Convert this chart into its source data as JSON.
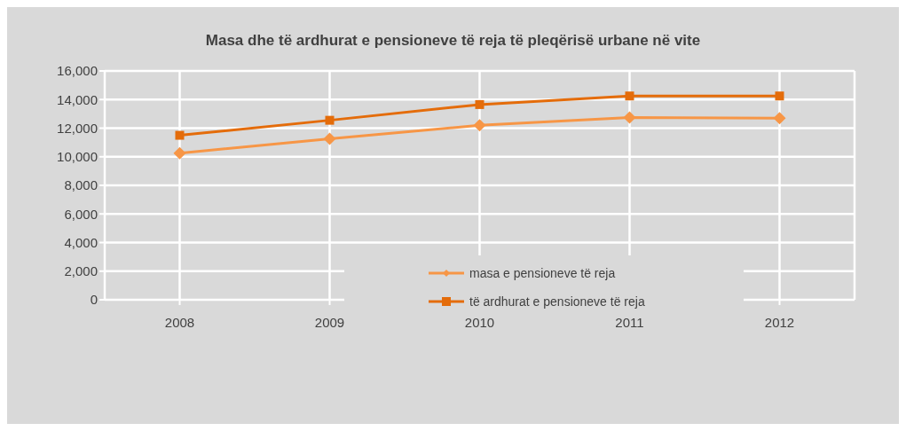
{
  "chart_data": {
    "type": "line",
    "title": "Masa dhe të ardhurat e pensioneve të reja të pleqërisë urbane në vite",
    "categories": [
      "2008",
      "2009",
      "2010",
      "2011",
      "2012"
    ],
    "series": [
      {
        "name": "masa e pensioneve të reja",
        "color": "#f79646",
        "marker": "diamond",
        "values": [
          10250,
          11250,
          12200,
          12750,
          12700
        ]
      },
      {
        "name": "të ardhurat e pensioneve të reja",
        "color": "#e46c0a",
        "marker": "square",
        "values": [
          11500,
          12550,
          13650,
          14250,
          14250
        ]
      }
    ],
    "ylim": [
      0,
      16000
    ],
    "yticks": [
      0,
      {
        "value": 2000,
        "label": "2,000"
      },
      {
        "value": 4000,
        "label": "4,000"
      },
      {
        "value": 6000,
        "label": "6,000"
      },
      {
        "value": 8000,
        "label": "8,000"
      },
      {
        "value": 10000,
        "label": "10,000"
      },
      {
        "value": 12000,
        "label": "12,000"
      },
      {
        "value": 14000,
        "label": "14,000"
      },
      {
        "value": 16000,
        "label": "16,000"
      }
    ],
    "grid": true,
    "legend": "bottom"
  }
}
